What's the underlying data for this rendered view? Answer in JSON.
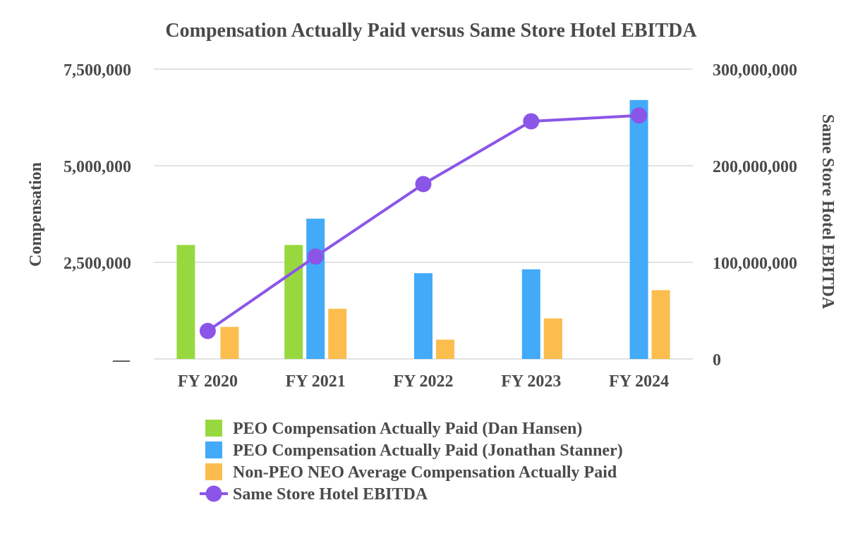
{
  "chart_data": {
    "type": "bar",
    "title": "Compensation Actually Paid versus Same Store Hotel EBITDA",
    "categories": [
      "FY 2020",
      "FY 2021",
      "FY 2022",
      "FY 2023",
      "FY 2024"
    ],
    "y_left": {
      "label": "Compensation",
      "range": [
        0,
        7500000
      ],
      "tick_labels": [
        "—",
        "2,500,000",
        "5,000,000",
        "7,500,000"
      ]
    },
    "y_right": {
      "label": "Same Store Hotel EBITDA",
      "range": [
        0,
        300000000
      ],
      "tick_labels": [
        "0",
        "100,000,000",
        "200,000,000",
        "300,000,000"
      ]
    },
    "grid": true,
    "legend_position": "bottom",
    "series": [
      {
        "name": "PEO Compensation Actually Paid (Dan Hansen)",
        "type": "bar",
        "axis": "left",
        "color": "#98d83f",
        "values": [
          2950000,
          2950000,
          null,
          null,
          null
        ]
      },
      {
        "name": "PEO Compensation Actually Paid (Jonathan Stanner)",
        "type": "bar",
        "axis": "left",
        "color": "#42aaf9",
        "values": [
          null,
          3630000,
          2220000,
          2320000,
          6700000
        ]
      },
      {
        "name": "Non-PEO NEO Average Compensation Actually Paid",
        "type": "bar",
        "axis": "left",
        "color": "#fbbd4e",
        "values": [
          830000,
          1300000,
          500000,
          1050000,
          1780000
        ]
      },
      {
        "name": "Same Store Hotel EBITDA",
        "type": "line",
        "axis": "right",
        "color": "#8b55e8",
        "values": [
          29000000,
          106000000,
          181000000,
          246000000,
          252000000
        ]
      }
    ]
  }
}
